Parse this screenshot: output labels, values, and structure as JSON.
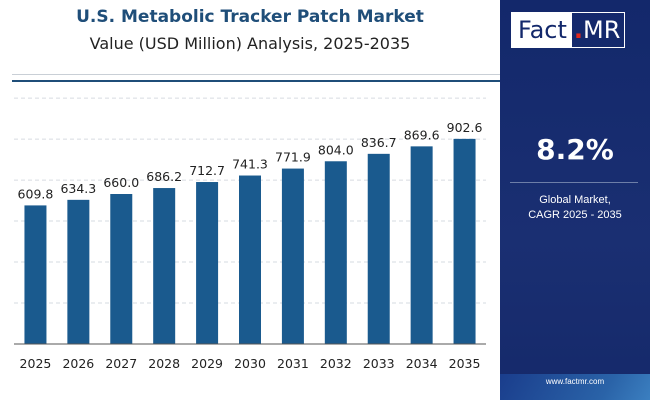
{
  "header": {
    "title": "U.S. Metabolic Tracker Patch Market",
    "subtitle": "Value (USD Million) Analysis, 2025-2035"
  },
  "brand": {
    "logo_main": "Fact",
    "logo_dot": ".",
    "logo_tail": "MR",
    "website": "www.factmr.com"
  },
  "sidebar": {
    "cagr_value": "8.2%",
    "cagr_line1": "Global Market,",
    "cagr_line2": "CAGR 2025 - 2035"
  },
  "colors": {
    "bar": "#1a5a8e",
    "panel": "#13286b",
    "title": "#1f4e79",
    "accent_dot": "#e0271c"
  },
  "chart_data": {
    "type": "bar",
    "categories": [
      "2025",
      "2026",
      "2027",
      "2028",
      "2029",
      "2030",
      "2031",
      "2032",
      "2033",
      "2034",
      "2035"
    ],
    "values": [
      609.8,
      634.3,
      660.0,
      686.2,
      712.7,
      741.3,
      771.9,
      804.0,
      836.7,
      869.6,
      902.6
    ],
    "value_labels": [
      "609.8",
      "634.3",
      "660.0",
      "686.2",
      "712.7",
      "741.3",
      "771.9",
      "804.0",
      "836.7",
      "869.6",
      "902.6"
    ],
    "ylim": [
      0,
      1100
    ],
    "grid": true,
    "legend": "none"
  }
}
